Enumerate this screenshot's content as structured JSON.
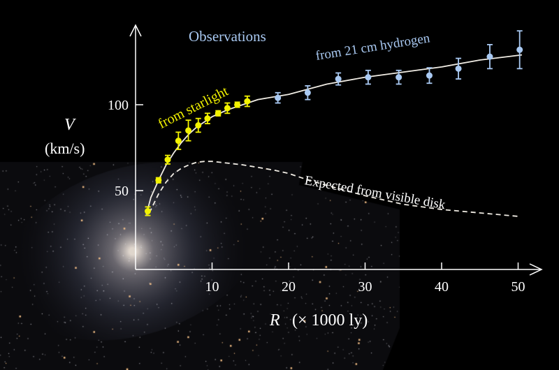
{
  "chart_data": {
    "type": "scatter",
    "xlabel_var": "R",
    "xlabel_unit": "(× 1000 ly)",
    "ylabel_var": "V",
    "ylabel_unit": "(km/s)",
    "xlim": [
      0,
      52
    ],
    "ylim": [
      0,
      140
    ],
    "xticks": [
      10,
      20,
      30,
      40,
      50
    ],
    "yticks": [
      50,
      100
    ],
    "grid": false,
    "annotations": {
      "observations": "Observations",
      "hydrogen": "from 21 cm hydrogen",
      "starlight": "from  starlight",
      "expected": "Expected from visible disk"
    },
    "colors": {
      "starlight": "#f2f200",
      "hydrogen": "#a9c9f2",
      "curve": "#f0ece4",
      "text": "#ffffff"
    },
    "series": [
      {
        "name": "from  starlight",
        "type": "errorbar",
        "x": [
          1.6,
          3.0,
          4.2,
          5.6,
          6.9,
          8.2,
          9.4,
          10.8,
          12.0,
          13.3,
          14.6
        ],
        "y": [
          38,
          56,
          68,
          79,
          85,
          88,
          92,
          95,
          98,
          100,
          102
        ],
        "err": [
          2.5,
          1.5,
          2.5,
          5,
          6,
          4,
          3,
          1.5,
          3,
          1.5,
          3
        ]
      },
      {
        "name": "from 21 cm hydrogen",
        "type": "errorbar",
        "x": [
          18.6,
          22.5,
          26.5,
          30.4,
          34.4,
          38.4,
          42.2,
          46.3,
          50.2
        ],
        "y": [
          104,
          107,
          115,
          116,
          116,
          117,
          121,
          128,
          132
        ],
        "err": [
          3,
          4,
          3.5,
          4,
          4,
          4.5,
          6,
          7,
          11
        ]
      },
      {
        "name": "fit",
        "type": "line",
        "x": [
          1.4,
          2,
          3,
          4,
          5,
          6,
          7,
          8,
          10,
          12,
          14,
          16,
          20,
          25,
          30,
          35,
          40,
          45,
          50.5
        ],
        "y": [
          36,
          46,
          56,
          65,
          72,
          78,
          83,
          87,
          93,
          97,
          100,
          103,
          106,
          112,
          116,
          119,
          122,
          126,
          129
        ]
      },
      {
        "name": "Expected from visible disk",
        "type": "dashed-line",
        "x": [
          1.8,
          3,
          4,
          5,
          6,
          7,
          8,
          9,
          10,
          12,
          14,
          16,
          18,
          20,
          22,
          25,
          30,
          35,
          40,
          45,
          50
        ],
        "y": [
          37,
          48,
          55,
          60,
          63,
          65,
          66.5,
          67,
          67,
          66,
          65,
          63.5,
          62,
          60,
          57,
          53,
          47,
          42,
          39,
          37,
          35
        ]
      }
    ]
  }
}
